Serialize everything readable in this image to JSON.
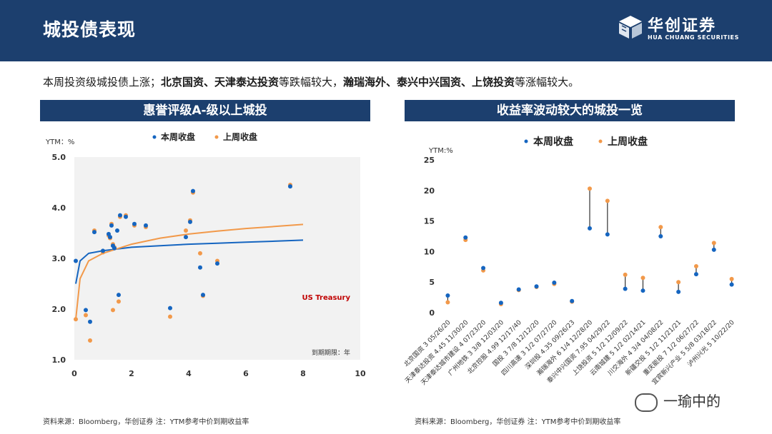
{
  "header": {
    "title": "城投债表现"
  },
  "logo": {
    "cn": "华创证券",
    "en": "HUA CHUANG SECURITIES"
  },
  "summary": {
    "p1": "本周投资级城投债上涨；",
    "b1": "北京国资、天津泰达投资",
    "p2": "等跌幅较大，",
    "b2": "瀚瑞海外、泰兴中兴国资、上饶投资",
    "p3": "等涨幅较大。"
  },
  "colors": {
    "this_week": "#1565c0",
    "last_week": "#f2994a",
    "treasury_label": "#c00000",
    "header": "#1c3f6e"
  },
  "chart_data": [
    {
      "type": "scatter",
      "title": "惠誉评级A-级以上城投",
      "ylabel": "YTM：%",
      "xlabel": "到期期限：年",
      "xlim": [
        0,
        10
      ],
      "ylim": [
        1.0,
        5.0
      ],
      "xticks": [
        "0",
        "2",
        "4",
        "6",
        "8",
        "10"
      ],
      "yticks": [
        "1.0",
        "2.0",
        "3.0",
        "4.0",
        "5.0"
      ],
      "legend": [
        "本周收盘",
        "上周收盘"
      ],
      "annotation": "US Treasury",
      "series": [
        {
          "name": "本周收盘",
          "points": [
            [
              0.05,
              2.95
            ],
            [
              0.4,
              1.98
            ],
            [
              0.55,
              1.75
            ],
            [
              0.7,
              3.52
            ],
            [
              1.0,
              3.15
            ],
            [
              1.2,
              3.48
            ],
            [
              1.25,
              3.42
            ],
            [
              1.3,
              3.65
            ],
            [
              1.35,
              3.25
            ],
            [
              1.4,
              3.2
            ],
            [
              1.5,
              3.55
            ],
            [
              1.55,
              2.28
            ],
            [
              1.6,
              3.85
            ],
            [
              1.8,
              3.82
            ],
            [
              2.1,
              3.68
            ],
            [
              2.5,
              3.65
            ],
            [
              3.35,
              2.02
            ],
            [
              3.9,
              3.42
            ],
            [
              4.05,
              3.72
            ],
            [
              4.15,
              4.33
            ],
            [
              4.4,
              2.82
            ],
            [
              4.5,
              2.28
            ],
            [
              5.0,
              2.9
            ],
            [
              7.55,
              4.42
            ]
          ]
        },
        {
          "name": "上周收盘",
          "points": [
            [
              0.05,
              1.8
            ],
            [
              0.4,
              1.88
            ],
            [
              0.55,
              1.38
            ],
            [
              0.7,
              3.55
            ],
            [
              1.0,
              3.12
            ],
            [
              1.2,
              3.45
            ],
            [
              1.25,
              3.4
            ],
            [
              1.3,
              3.68
            ],
            [
              1.35,
              3.28
            ],
            [
              1.4,
              3.22
            ],
            [
              1.35,
              1.98
            ],
            [
              1.55,
              2.15
            ],
            [
              1.6,
              3.82
            ],
            [
              1.8,
              3.85
            ],
            [
              2.1,
              3.65
            ],
            [
              2.5,
              3.62
            ],
            [
              3.35,
              1.85
            ],
            [
              3.9,
              3.55
            ],
            [
              4.05,
              3.75
            ],
            [
              4.15,
              4.3
            ],
            [
              4.4,
              3.1
            ],
            [
              4.5,
              2.26
            ],
            [
              5.0,
              2.95
            ],
            [
              7.55,
              4.45
            ]
          ]
        }
      ],
      "curves": [
        {
          "name": "blue fit",
          "color": "#1565c0",
          "points": [
            [
              0.05,
              2.5
            ],
            [
              0.2,
              2.95
            ],
            [
              0.5,
              3.1
            ],
            [
              1,
              3.15
            ],
            [
              2,
              3.22
            ],
            [
              3,
              3.25
            ],
            [
              4,
              3.28
            ],
            [
              5,
              3.3
            ],
            [
              6,
              3.32
            ],
            [
              7,
              3.34
            ],
            [
              8,
              3.36
            ]
          ]
        },
        {
          "name": "orange fit",
          "color": "#f2994a",
          "points": [
            [
              0.05,
              1.8
            ],
            [
              0.2,
              2.6
            ],
            [
              0.5,
              2.95
            ],
            [
              1,
              3.1
            ],
            [
              2,
              3.28
            ],
            [
              3,
              3.4
            ],
            [
              4,
              3.48
            ],
            [
              5,
              3.54
            ],
            [
              6,
              3.59
            ],
            [
              7,
              3.63
            ],
            [
              8,
              3.67
            ]
          ]
        }
      ]
    },
    {
      "type": "scatter",
      "title": "收益率波动较大的城投一览",
      "ylabel": "YTM:%",
      "ylim": [
        0,
        25
      ],
      "yticks": [
        "0",
        "5",
        "10",
        "15",
        "20",
        "25"
      ],
      "legend": [
        "本周收盘",
        "上周收盘"
      ],
      "categories": [
        "北京国资 3 05/26/20",
        "天津泰达投资 4.45 11/30/20",
        "天津泰达城市建设 4 07/23/20",
        "广州地铁 3 3/8 12/03/20",
        "北京控股 4.99 12/17/40",
        "国投 3 7/8 12/12/20",
        "四川高速 3 1/2 07/27/20",
        "深圳投 4.35 09/26/23",
        "瀚瑞海外 6 1/4 12/28/20",
        "泰兴中兴国资 7.95 04/29/22",
        "上饶投资 5 1/2 12/09/22",
        "云南城建 5 1/2 02/14/21",
        "川交海外 4 3/4 04/08/22",
        "新疆交投 5 1/2 11/21/21",
        "重庆能投 7 1/2 06/27/22",
        "宜宾新兴产业 5 5/8 03/18/22",
        "泸州兴光 5 10/22/20"
      ],
      "series": [
        {
          "name": "本周收盘",
          "values": [
            2.8,
            12.3,
            7.3,
            1.6,
            3.8,
            4.3,
            4.9,
            1.9,
            13.8,
            12.8,
            3.9,
            3.6,
            12.5,
            3.4,
            6.3,
            10.3,
            4.6
          ]
        },
        {
          "name": "上周收盘",
          "values": [
            1.7,
            11.9,
            6.9,
            1.4,
            3.7,
            4.2,
            4.7,
            1.8,
            20.3,
            18.3,
            6.2,
            5.7,
            14.0,
            5.0,
            7.6,
            11.4,
            5.5
          ]
        }
      ]
    }
  ],
  "footnotes": {
    "left": "资料来源：Bloomberg，华创证券        注：YTM参考中价到期收益率",
    "right": "资料来源：Bloomberg，华创证券        注：YTM参考中价到期收益率"
  },
  "watermark": "一瑜中的"
}
